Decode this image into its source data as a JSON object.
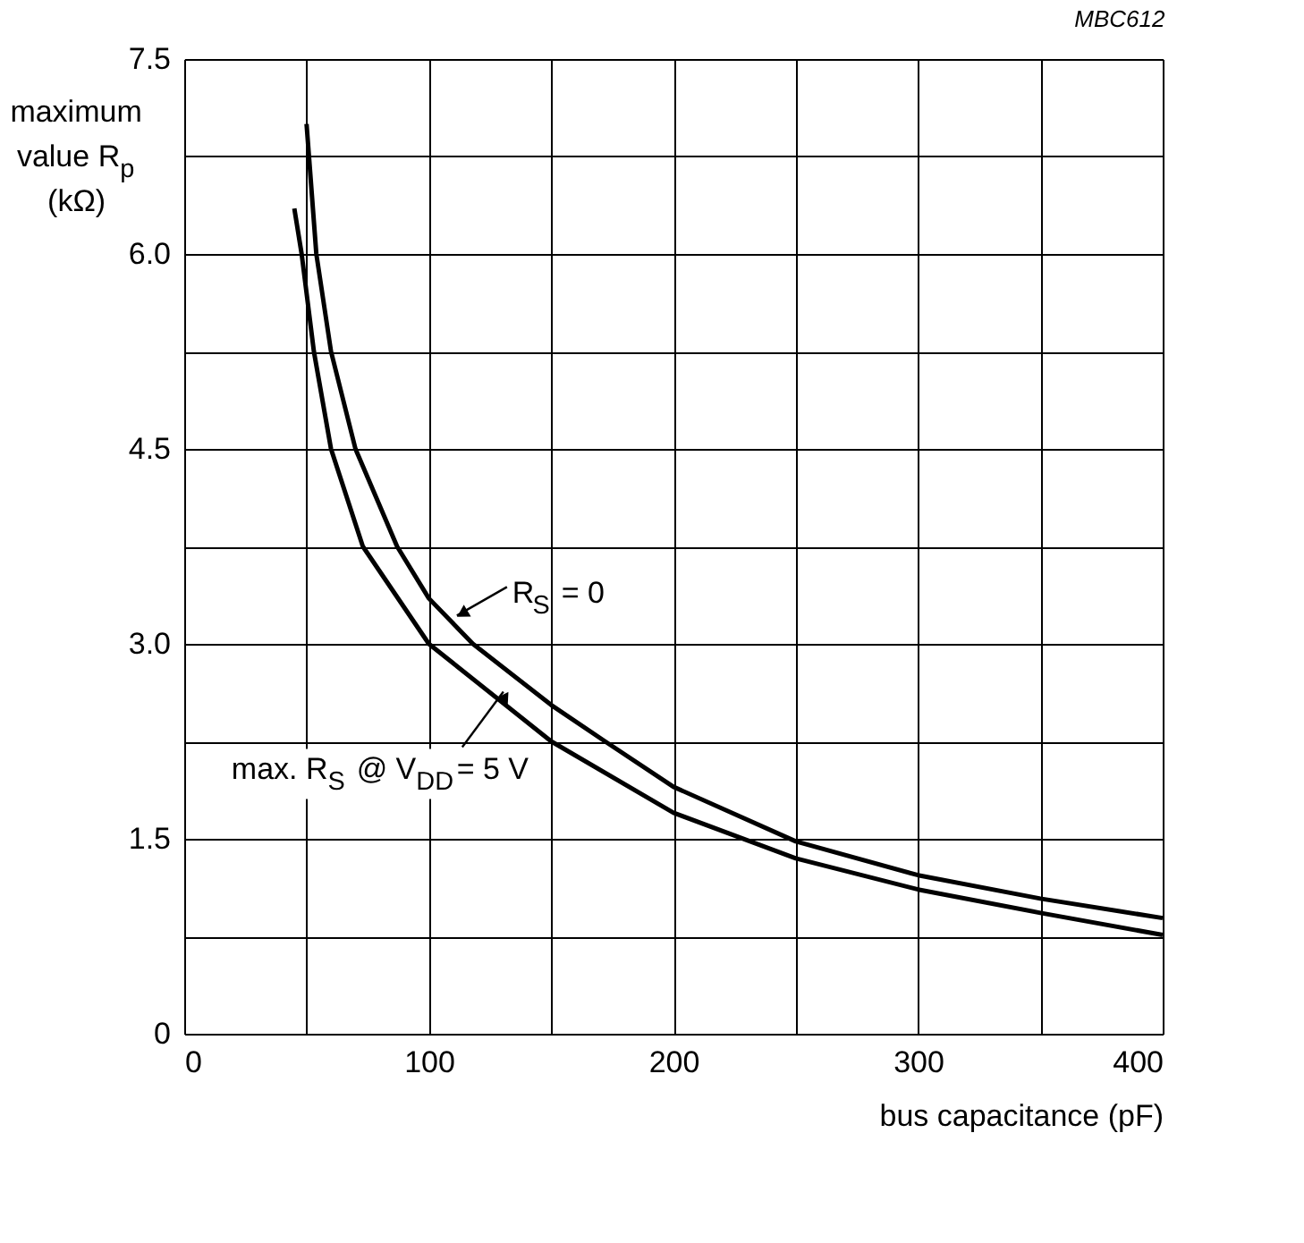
{
  "chart_data": {
    "type": "line",
    "title": "MBC612",
    "xlabel": "bus capacitance (pF)",
    "ylabel": "maximum value R$_{p}$ (kΩ)",
    "xlim": [
      0,
      400
    ],
    "ylim": [
      0,
      7.5
    ],
    "xticks": [
      0,
      {
        "value": 50,
        "label": null
      },
      100,
      {
        "value": 150,
        "label": null
      },
      200,
      {
        "value": 250,
        "label": null
      },
      300,
      {
        "value": 350,
        "label": null
      },
      400
    ],
    "yticks": [
      0,
      {
        "value": 0.75,
        "label": null
      },
      1.5,
      {
        "value": 2.25,
        "label": null
      },
      {
        "value": 3,
        "label": "3.0"
      },
      {
        "value": 3.75,
        "label": null
      },
      4.5,
      {
        "value": 5.25,
        "label": null
      },
      {
        "value": 6,
        "label": "6.0"
      },
      {
        "value": 6.75,
        "label": null
      },
      7.5
    ],
    "grid": true,
    "legend": false,
    "marker": "none",
    "line_style": "solid",
    "series": [
      {
        "color": "#000000",
        "x": [
          50,
          54,
          60,
          70,
          87,
          100,
          118,
          150,
          172,
          200,
          250,
          300,
          350,
          400
        ],
        "values": [
          7.0,
          6.0,
          5.25,
          4.5,
          3.75,
          3.35,
          3.0,
          2.53,
          2.25,
          1.9,
          1.48,
          1.22,
          1.04,
          0.89
        ]
      },
      {
        "color": "#000000",
        "x": [
          45,
          48,
          53,
          60,
          73,
          100,
          150,
          200,
          250,
          300,
          350,
          400
        ],
        "values": [
          6.35,
          6.0,
          5.25,
          4.5,
          3.75,
          3.0,
          2.25,
          1.7,
          1.35,
          1.11,
          0.93,
          0.76
        ]
      }
    ],
    "annotations": [
      {
        "text": "R$_{S}$ = 0",
        "x": 110,
        "y": 3.19
      },
      {
        "text": "max. R$_{S}$ @ V$_{DD}$= 5 V",
        "x": 129,
        "y": 2.66
      }
    ]
  }
}
